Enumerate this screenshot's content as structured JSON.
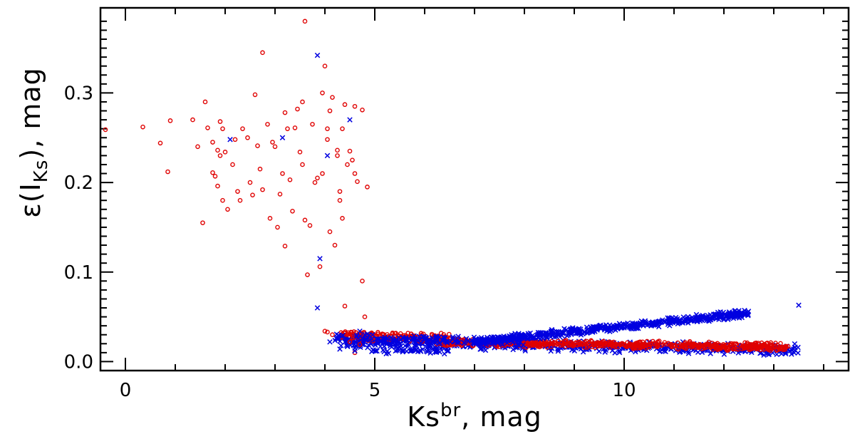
{
  "chart_data": {
    "type": "scatter",
    "title": "",
    "xlabel": {
      "base": "Ks",
      "sup": "br",
      "suffix": ", mag"
    },
    "ylabel": {
      "prefix": "ε(I",
      "sub": "Ks",
      "suffix": "), mag"
    },
    "xlim": [
      -0.5,
      14.5
    ],
    "ylim": [
      -0.01,
      0.395
    ],
    "xticks": [
      0,
      5,
      10
    ],
    "xtick_labels": [
      "0",
      "5",
      "10"
    ],
    "yticks": [
      0.0,
      0.1,
      0.2,
      0.3
    ],
    "ytick_labels": [
      "0.0",
      "0.1",
      "0.2",
      "0.3"
    ],
    "legend": "none",
    "series": [
      {
        "name": "red circles",
        "marker": "circle",
        "color": "#e00000",
        "points": [
          [
            -0.4,
            0.259
          ],
          [
            0.35,
            0.262
          ],
          [
            0.7,
            0.244
          ],
          [
            0.85,
            0.212
          ],
          [
            0.9,
            0.269
          ],
          [
            1.35,
            0.27
          ],
          [
            1.45,
            0.24
          ],
          [
            1.55,
            0.155
          ],
          [
            1.6,
            0.29
          ],
          [
            1.65,
            0.261
          ],
          [
            1.75,
            0.245
          ],
          [
            1.75,
            0.211
          ],
          [
            1.8,
            0.207
          ],
          [
            1.85,
            0.236
          ],
          [
            1.85,
            0.196
          ],
          [
            1.9,
            0.268
          ],
          [
            1.9,
            0.23
          ],
          [
            1.95,
            0.26
          ],
          [
            1.95,
            0.18
          ],
          [
            2.0,
            0.234
          ],
          [
            2.05,
            0.17
          ],
          [
            2.15,
            0.22
          ],
          [
            2.2,
            0.248
          ],
          [
            2.25,
            0.19
          ],
          [
            2.3,
            0.18
          ],
          [
            2.35,
            0.26
          ],
          [
            2.45,
            0.25
          ],
          [
            2.5,
            0.2
          ],
          [
            2.55,
            0.186
          ],
          [
            2.6,
            0.298
          ],
          [
            2.65,
            0.241
          ],
          [
            2.7,
            0.215
          ],
          [
            2.75,
            0.192
          ],
          [
            2.75,
            0.345
          ],
          [
            2.85,
            0.265
          ],
          [
            2.9,
            0.16
          ],
          [
            2.95,
            0.245
          ],
          [
            3.0,
            0.24
          ],
          [
            3.05,
            0.15
          ],
          [
            3.1,
            0.187
          ],
          [
            3.15,
            0.21
          ],
          [
            3.2,
            0.129
          ],
          [
            3.2,
            0.278
          ],
          [
            3.25,
            0.26
          ],
          [
            3.3,
            0.203
          ],
          [
            3.35,
            0.168
          ],
          [
            3.4,
            0.261
          ],
          [
            3.45,
            0.282
          ],
          [
            3.5,
            0.234
          ],
          [
            3.55,
            0.22
          ],
          [
            3.55,
            0.29
          ],
          [
            3.6,
            0.38
          ],
          [
            3.6,
            0.158
          ],
          [
            3.65,
            0.097
          ],
          [
            3.7,
            0.152
          ],
          [
            3.75,
            0.265
          ],
          [
            3.8,
            0.2
          ],
          [
            3.85,
            0.205
          ],
          [
            3.9,
            0.106
          ],
          [
            3.95,
            0.21
          ],
          [
            3.95,
            0.3
          ],
          [
            4.0,
            0.33
          ],
          [
            4.05,
            0.26
          ],
          [
            4.05,
            0.248
          ],
          [
            4.1,
            0.145
          ],
          [
            4.1,
            0.28
          ],
          [
            4.15,
            0.295
          ],
          [
            4.2,
            0.13
          ],
          [
            4.25,
            0.23
          ],
          [
            4.25,
            0.236
          ],
          [
            4.3,
            0.18
          ],
          [
            4.3,
            0.19
          ],
          [
            4.35,
            0.16
          ],
          [
            4.35,
            0.26
          ],
          [
            4.4,
            0.287
          ],
          [
            4.45,
            0.22
          ],
          [
            4.5,
            0.235
          ],
          [
            4.55,
            0.225
          ],
          [
            4.6,
            0.285
          ],
          [
            4.6,
            0.21
          ],
          [
            4.65,
            0.201
          ],
          [
            4.75,
            0.09
          ],
          [
            4.75,
            0.281
          ],
          [
            4.85,
            0.195
          ],
          [
            4.4,
            0.062
          ],
          [
            4.5,
            0.022
          ],
          [
            4.6,
            0.01
          ],
          [
            4.8,
            0.05
          ],
          [
            4.0,
            0.034
          ],
          [
            4.05,
            0.033
          ],
          [
            4.15,
            0.03
          ],
          [
            4.45,
            0.03
          ],
          [
            4.55,
            0.029
          ],
          [
            4.7,
            0.019
          ]
        ]
      },
      {
        "name": "blue crosses",
        "marker": "x",
        "color": "#0000e0",
        "points": [
          [
            2.1,
            0.248
          ],
          [
            3.15,
            0.25
          ],
          [
            3.85,
            0.342
          ],
          [
            3.9,
            0.115
          ],
          [
            3.85,
            0.06
          ],
          [
            4.05,
            0.23
          ],
          [
            4.5,
            0.27
          ],
          [
            4.1,
            0.022
          ],
          [
            4.3,
            0.014
          ],
          [
            4.6,
            0.012
          ],
          [
            4.7,
            0.034
          ],
          [
            13.5,
            0.063
          ]
        ]
      }
    ],
    "dense_bands": [
      {
        "series": 1,
        "x_start": 4.3,
        "x_end": 13.5,
        "y_start": 0.022,
        "y_end": 0.013,
        "spread": 0.007,
        "count": 650,
        "seed": 11
      },
      {
        "series": 0,
        "x_start": 4.3,
        "x_end": 6.5,
        "y_start": 0.029,
        "y_end": 0.027,
        "spread": 0.006,
        "count": 180,
        "seed": 23
      },
      {
        "series": 0,
        "x_start": 6.2,
        "x_end": 13.3,
        "y_start": 0.022,
        "y_end": 0.016,
        "spread": 0.005,
        "count": 620,
        "seed": 37
      },
      {
        "series": 1,
        "x_start": 4.2,
        "x_end": 8.0,
        "y_start": 0.027,
        "y_end": 0.022,
        "spread": 0.005,
        "count": 160,
        "seed": 53
      },
      {
        "series": 1,
        "x_start": 7.0,
        "x_end": 12.5,
        "y_start": 0.022,
        "y_end": 0.054,
        "spread": 0.005,
        "count": 560,
        "seed": 71
      },
      {
        "series": 1,
        "x_start": 4.9,
        "x_end": 6.5,
        "y_start": 0.011,
        "y_end": 0.012,
        "spread": 0.004,
        "count": 45,
        "seed": 89
      }
    ]
  }
}
